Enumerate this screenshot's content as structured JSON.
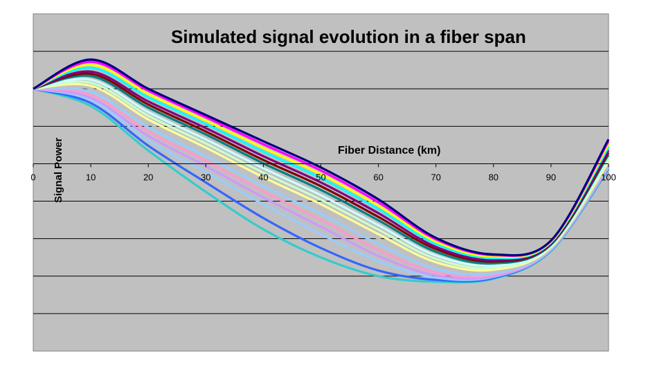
{
  "chart_data": {
    "type": "line",
    "title": "Simulated signal evolution in a fiber span",
    "xlabel": "Fiber Distance (km)",
    "ylabel": "Signal Power",
    "xlim": [
      0,
      100
    ],
    "ylim": [
      -5,
      4
    ],
    "x_ticks": [
      "0",
      "10",
      "20",
      "30",
      "40",
      "50",
      "60",
      "70",
      "80",
      "90",
      "100"
    ],
    "grid": true,
    "legend": "none",
    "background": "#C0C0C0",
    "x": [
      0,
      10,
      20,
      30,
      40,
      50,
      60,
      70,
      80,
      90,
      100
    ],
    "top_curve": [
      2.0,
      2.78,
      2.0,
      1.3,
      0.6,
      -0.1,
      -0.95,
      -1.98,
      -2.42,
      -2.05,
      0.65
    ],
    "bottom_curve": [
      2.0,
      1.54,
      0.35,
      -0.75,
      -1.75,
      -2.5,
      -3.0,
      -3.15,
      -3.07,
      -2.33,
      -0.15
    ],
    "series": [
      {
        "color": "#000080",
        "values": [
          2.0,
          2.78,
          2.0,
          1.3,
          0.6,
          -0.1,
          -0.95,
          -1.98,
          -2.42,
          -2.05,
          0.65
        ]
      },
      {
        "color": "#FF00FF",
        "values": [
          2.0,
          2.72,
          1.95,
          1.24,
          0.52,
          -0.18,
          -1.03,
          -2.02,
          -2.44,
          -2.06,
          0.6
        ]
      },
      {
        "color": "#FFFF00",
        "values": [
          2.0,
          2.64,
          1.86,
          1.15,
          0.42,
          -0.28,
          -1.12,
          -2.08,
          -2.48,
          -2.08,
          0.52
        ]
      },
      {
        "color": "#00FFFF",
        "values": [
          2.0,
          2.56,
          1.77,
          1.06,
          0.32,
          -0.38,
          -1.21,
          -2.14,
          -2.52,
          -2.1,
          0.44
        ]
      },
      {
        "color": "#800080",
        "values": [
          2.0,
          2.46,
          1.66,
          0.95,
          0.2,
          -0.5,
          -1.32,
          -2.22,
          -2.57,
          -2.12,
          0.36
        ]
      },
      {
        "color": "#800000",
        "values": [
          2.0,
          2.4,
          1.58,
          0.86,
          0.1,
          -0.6,
          -1.42,
          -2.28,
          -2.61,
          -2.14,
          0.3
        ]
      },
      {
        "color": "#008080",
        "values": [
          2.0,
          2.34,
          1.5,
          0.78,
          0.01,
          -0.7,
          -1.51,
          -2.35,
          -2.66,
          -2.16,
          0.24
        ]
      },
      {
        "color": "#CCFFFF",
        "values": [
          2.0,
          2.24,
          1.38,
          0.65,
          -0.12,
          -0.84,
          -1.64,
          -2.45,
          -2.72,
          -2.19,
          0.17
        ]
      },
      {
        "color": "#CCFFCC",
        "values": [
          2.0,
          2.16,
          1.28,
          0.54,
          -0.24,
          -0.96,
          -1.76,
          -2.54,
          -2.78,
          -2.21,
          0.1
        ]
      },
      {
        "color": "#FFFF99",
        "values": [
          2.0,
          2.08,
          1.18,
          0.43,
          -0.36,
          -1.08,
          -1.88,
          -2.63,
          -2.83,
          -2.23,
          0.05
        ]
      },
      {
        "color": "#C0C0C0",
        "values": [
          2.0,
          2.0,
          1.08,
          0.32,
          -0.48,
          -1.2,
          -2.0,
          -2.72,
          -2.88,
          -2.25,
          0.0
        ]
      },
      {
        "color": "#99CCFF",
        "values": [
          2.0,
          1.92,
          0.97,
          0.2,
          -0.6,
          -1.34,
          -2.14,
          -2.81,
          -2.93,
          -2.27,
          -0.03
        ]
      },
      {
        "color": "#FF99CC",
        "values": [
          2.0,
          1.84,
          0.86,
          0.08,
          -0.74,
          -1.5,
          -2.3,
          -2.9,
          -2.97,
          -2.28,
          -0.06
        ]
      },
      {
        "color": "#CC99FF",
        "values": [
          2.0,
          1.76,
          0.74,
          -0.06,
          -0.9,
          -1.68,
          -2.46,
          -2.98,
          -3.0,
          -2.29,
          -0.08
        ]
      },
      {
        "color": "#99CCFF",
        "values": [
          2.0,
          1.7,
          0.62,
          -0.22,
          -1.08,
          -1.88,
          -2.6,
          -3.04,
          -3.02,
          -2.3,
          -0.1
        ]
      },
      {
        "color": "#3366FF",
        "values": [
          2.0,
          1.62,
          0.48,
          -0.5,
          -1.45,
          -2.25,
          -2.85,
          -3.1,
          -3.05,
          -2.31,
          -0.12
        ]
      },
      {
        "color": "#33CCCC",
        "values": [
          2.0,
          1.54,
          0.35,
          -0.75,
          -1.75,
          -2.5,
          -3.0,
          -3.15,
          -3.07,
          -2.33,
          -0.15
        ]
      }
    ]
  }
}
